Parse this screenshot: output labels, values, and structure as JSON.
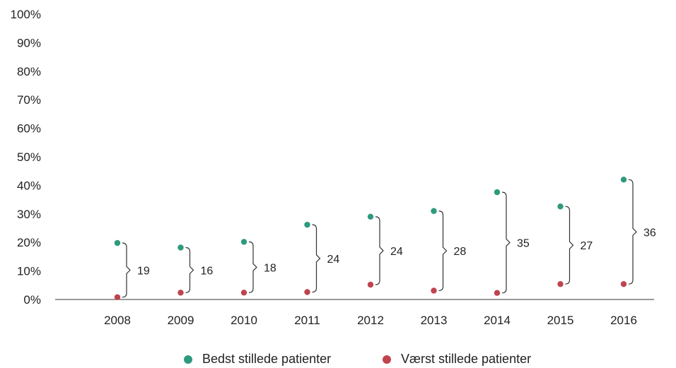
{
  "chart_data": {
    "type": "scatter",
    "categories": [
      "2008",
      "2009",
      "2010",
      "2011",
      "2012",
      "2013",
      "2014",
      "2015",
      "2016"
    ],
    "series": [
      {
        "name": "Bedst stillede patienter",
        "color": "#2e9a7d",
        "values": [
          19.8,
          18.2,
          20.2,
          26.2,
          29.0,
          31.0,
          37.6,
          32.6,
          42.0
        ]
      },
      {
        "name": "Værst stillede patienter",
        "color": "#c0434f",
        "values": [
          0.8,
          2.4,
          2.4,
          2.6,
          5.2,
          3.1,
          2.3,
          5.4,
          5.4
        ]
      }
    ],
    "gap_labels": [
      "19",
      "16",
      "18",
      "24",
      "24",
      "28",
      "35",
      "27",
      "36"
    ],
    "y_ticks": [
      "0%",
      "10%",
      "20%",
      "30%",
      "40%",
      "50%",
      "60%",
      "70%",
      "80%",
      "90%",
      "100%"
    ],
    "ylim": [
      0,
      100
    ],
    "grid": false,
    "legend_position": "bottom"
  }
}
